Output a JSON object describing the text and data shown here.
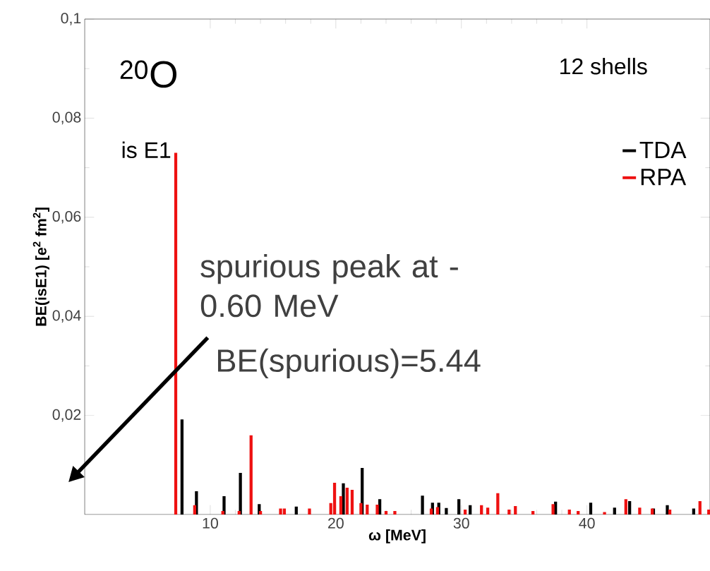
{
  "chart_data": {
    "type": "bar",
    "xlabel": "ω [MeV]",
    "ylabel": "BE(isE1) [e$^{2}$ fm$^{2}$]",
    "xlim": [
      0,
      49.8
    ],
    "xticks": [
      10,
      20,
      30,
      40
    ],
    "ylim": [
      0,
      0.1
    ],
    "yticks": [
      {
        "value": 0.02,
        "label": "0,02"
      },
      {
        "value": 0.04,
        "label": "0,04"
      },
      {
        "value": 0.06,
        "label": "0,06"
      },
      {
        "value": 0.08,
        "label": "0,08"
      },
      {
        "value": 0.1,
        "label": "0,1"
      }
    ],
    "legend": "top right",
    "grid": false,
    "annotations": [
      "$^{20}$O",
      "is E1",
      "12 shells",
      "spurious peak at -0.60 MeV",
      "BE(spurious)=5.44"
    ],
    "series": [
      {
        "name": "TDA",
        "color": "#000000",
        "x": [
          7.75,
          8.9,
          11.1,
          12.4,
          13.9,
          16.85,
          20.6,
          22.1,
          23.5,
          26.9,
          27.7,
          28.2,
          28.8,
          29.8,
          30.7,
          37.5,
          40.3,
          42.2,
          43.4,
          45.3,
          46.4,
          48.5
        ],
        "values": [
          0.0192,
          0.0047,
          0.0037,
          0.0084,
          0.0021,
          0.0016,
          0.0063,
          0.0094,
          0.0031,
          0.0038,
          0.0024,
          0.0024,
          0.0013,
          0.0031,
          0.0019,
          0.0026,
          0.0024,
          0.0014,
          0.0027,
          0.0012,
          0.0019,
          0.0012
        ]
      },
      {
        "name": "RPA",
        "color": "#ee1111",
        "x": [
          7.25,
          8.76,
          11.0,
          12.3,
          13.25,
          14.0,
          15.6,
          15.9,
          17.9,
          19.6,
          19.9,
          20.4,
          20.9,
          21.3,
          22.0,
          22.5,
          23.3,
          24.0,
          24.7,
          27.6,
          28.1,
          30.3,
          31.6,
          32.1,
          32.9,
          33.8,
          34.3,
          35.7,
          37.3,
          38.6,
          39.3,
          41.4,
          43.1,
          44.2,
          45.2,
          46.6,
          49.0,
          49.7
        ],
        "values": [
          0.073,
          0.0019,
          0.0007,
          0.0007,
          0.016,
          0.0007,
          0.0012,
          0.0012,
          0.0012,
          0.0023,
          0.0064,
          0.0037,
          0.0054,
          0.005,
          0.0023,
          0.002,
          0.002,
          0.0007,
          0.0007,
          0.0012,
          0.0015,
          0.001,
          0.0019,
          0.0014,
          0.0043,
          0.001,
          0.0017,
          0.0007,
          0.0021,
          0.001,
          0.0007,
          0.0005,
          0.0031,
          0.0014,
          0.0012,
          0.001,
          0.0027,
          0.001
        ]
      }
    ]
  }
}
